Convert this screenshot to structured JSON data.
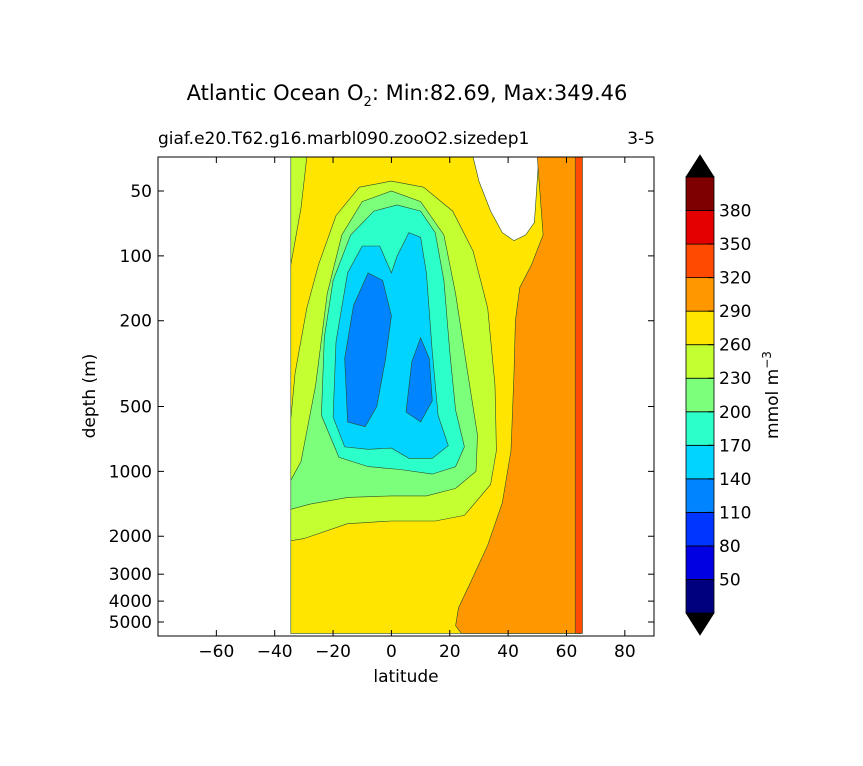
{
  "chart_data": {
    "type": "heatmap",
    "title": {
      "prefix": "Atlantic Ocean O",
      "subscript": "2",
      "suffix": ": Min:82.69, Max:349.46"
    },
    "subtitle": "giaf.e20.T62.g16.marbl090.zooO2.sizedep1",
    "subtitle_right": "3-5",
    "xlabel": "latitude",
    "ylabel": "depth (m)",
    "x_range": [
      -80,
      90
    ],
    "x_ticks": [
      -60,
      -40,
      -20,
      0,
      20,
      40,
      60,
      80
    ],
    "y_scale": "log",
    "y_inverted": true,
    "y_range": [
      30,
      5600
    ],
    "y_ticks": [
      50,
      100,
      200,
      500,
      1000,
      2000,
      3000,
      4000,
      5000
    ],
    "colorbar": {
      "label": "mmol m",
      "label_superscript": "−3",
      "levels": [
        20,
        50,
        80,
        110,
        140,
        170,
        200,
        230,
        260,
        290,
        320,
        350,
        380,
        410
      ],
      "tick_labels": [
        "50",
        "80",
        "110",
        "140",
        "170",
        "200",
        "230",
        "260",
        "290",
        "320",
        "350",
        "380"
      ],
      "colors": [
        "#00007f",
        "#0000e2",
        "#0034ff",
        "#0084ff",
        "#00d4ff",
        "#2cffca",
        "#7cff7a",
        "#c4ff32",
        "#ffe500",
        "#ff9800",
        "#ff4a00",
        "#e40000",
        "#7f0000"
      ],
      "extend": "both"
    },
    "regions": [
      {
        "level": 230,
        "points": [
          [
            -34.5,
            31
          ],
          [
            28,
            31
          ],
          [
            30,
            45
          ],
          [
            34,
            62
          ],
          [
            38,
            78
          ],
          [
            42,
            85
          ],
          [
            46,
            80
          ],
          [
            49,
            70
          ],
          [
            50.5,
            31
          ],
          [
            60,
            31
          ],
          [
            65,
            31
          ],
          [
            65,
            5650
          ],
          [
            -34.5,
            5650
          ]
        ]
      },
      {
        "level": 260,
        "points": [
          [
            44,
            31
          ],
          [
            50,
            31
          ],
          [
            52,
            80
          ],
          [
            48,
            110
          ],
          [
            44,
            140
          ],
          [
            42.5,
            200
          ],
          [
            42,
            350
          ],
          [
            41,
            800
          ],
          [
            38,
            1400
          ],
          [
            33,
            2200
          ],
          [
            27,
            3300
          ],
          [
            23,
            4300
          ],
          [
            22,
            5200
          ],
          [
            24,
            5650
          ],
          [
            65,
            5650
          ],
          [
            65,
            31
          ]
        ]
      },
      {
        "level": 290,
        "points": [
          [
            63,
            31
          ],
          [
            65.5,
            31
          ],
          [
            65.5,
            5650
          ],
          [
            63,
            5650
          ]
        ]
      },
      {
        "level": 200,
        "points": [
          [
            -34.5,
            31
          ],
          [
            -29,
            31
          ],
          [
            -31,
            60
          ],
          [
            -34.5,
            110
          ]
        ]
      },
      {
        "level": 200,
        "points": [
          [
            -34.5,
            570
          ],
          [
            -33,
            350
          ],
          [
            -29,
            175
          ],
          [
            -25,
            110
          ],
          [
            -19,
            65
          ],
          [
            -11,
            48
          ],
          [
            0,
            45
          ],
          [
            11,
            48
          ],
          [
            21,
            62
          ],
          [
            28,
            95
          ],
          [
            33,
            175
          ],
          [
            35.5,
            400
          ],
          [
            36,
            800
          ],
          [
            34,
            1150
          ],
          [
            25,
            1600
          ],
          [
            15,
            1700
          ],
          [
            0,
            1700
          ],
          [
            -15,
            1750
          ],
          [
            -30,
            2050
          ],
          [
            -34.5,
            2100
          ]
        ]
      },
      {
        "level": 170,
        "points": [
          [
            -34.5,
            1100
          ],
          [
            -31,
            900
          ],
          [
            -26,
            400
          ],
          [
            -22,
            150
          ],
          [
            -17,
            80
          ],
          [
            -10,
            56
          ],
          [
            0,
            50
          ],
          [
            10,
            56
          ],
          [
            18,
            80
          ],
          [
            22,
            150
          ],
          [
            26,
            340
          ],
          [
            29.5,
            680
          ],
          [
            29,
            1000
          ],
          [
            22,
            1200
          ],
          [
            12,
            1300
          ],
          [
            0,
            1300
          ],
          [
            -15,
            1320
          ],
          [
            -28,
            1420
          ],
          [
            -34.5,
            1500
          ]
        ]
      },
      {
        "level": 140,
        "points": [
          [
            -24,
            550
          ],
          [
            -23,
            240
          ],
          [
            -20,
            130
          ],
          [
            -14,
            80
          ],
          [
            -6,
            62
          ],
          [
            2,
            58
          ],
          [
            10,
            62
          ],
          [
            15,
            78
          ],
          [
            18,
            130
          ],
          [
            20,
            280
          ],
          [
            22,
            520
          ],
          [
            25,
            770
          ],
          [
            22,
            950
          ],
          [
            14,
            1030
          ],
          [
            3,
            980
          ],
          [
            -8,
            950
          ],
          [
            -18,
            860
          ]
        ]
      },
      {
        "level": 110,
        "points": [
          [
            -20,
            560
          ],
          [
            -19,
            250
          ],
          [
            -15,
            120
          ],
          [
            -10,
            90
          ],
          [
            -4,
            90
          ],
          [
            0,
            120
          ],
          [
            2,
            100
          ],
          [
            6,
            78
          ],
          [
            10,
            82
          ],
          [
            12,
            120
          ],
          [
            14,
            280
          ],
          [
            16,
            550
          ],
          [
            19.5,
            760
          ],
          [
            14,
            870
          ],
          [
            6,
            870
          ],
          [
            0,
            780
          ],
          [
            -8,
            790
          ],
          [
            -16,
            770
          ]
        ]
      },
      {
        "level": 80,
        "points": [
          [
            -15,
            590
          ],
          [
            -16,
            300
          ],
          [
            -13,
            170
          ],
          [
            -8,
            120
          ],
          [
            -3,
            130
          ],
          [
            0,
            190
          ],
          [
            -2,
            300
          ],
          [
            -5,
            500
          ],
          [
            -9,
            620
          ]
        ]
      },
      {
        "level": 80,
        "points": [
          [
            5,
            530
          ],
          [
            7,
            310
          ],
          [
            10,
            240
          ],
          [
            13,
            300
          ],
          [
            14,
            470
          ],
          [
            10,
            590
          ]
        ]
      }
    ]
  }
}
